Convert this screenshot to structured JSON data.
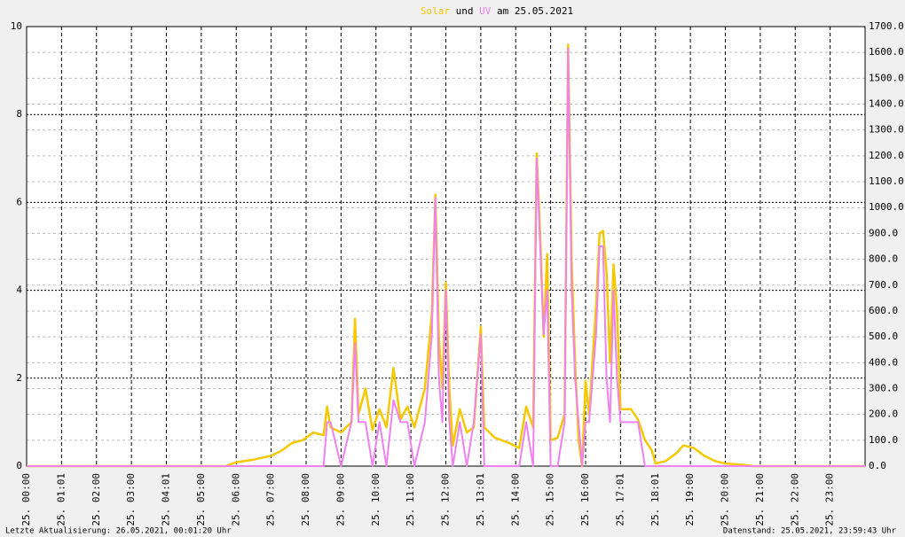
{
  "chart_data": {
    "type": "line",
    "title_connector": "und",
    "title_date": "am 25.05.2021",
    "footer_left": "Letzte Aktualisierung: 26.05.2021, 00:01:20 Uhr",
    "footer_right": "Datenstand: 25.05.2021, 23:59:43 Uhr",
    "x": [
      0,
      5.7,
      6.0,
      6.5,
      7.0,
      7.3,
      7.6,
      7.9,
      8.2,
      8.5,
      8.6,
      8.7,
      9.0,
      9.3,
      9.4,
      9.5,
      9.7,
      9.9,
      10.1,
      10.3,
      10.5,
      10.7,
      10.9,
      11.1,
      11.4,
      11.6,
      11.7,
      11.8,
      11.9,
      12.0,
      12.1,
      12.2,
      12.4,
      12.6,
      12.8,
      13.0,
      13.1,
      13.4,
      13.8,
      14.1,
      14.3,
      14.5,
      14.6,
      14.7,
      14.8,
      14.9,
      15.0,
      15.2,
      15.4,
      15.5,
      15.6,
      15.7,
      15.8,
      15.9,
      16.0,
      16.1,
      16.3,
      16.4,
      16.5,
      16.6,
      16.7,
      16.8,
      16.9,
      17.0,
      17.3,
      17.5,
      17.7,
      17.9,
      18.0,
      18.3,
      18.6,
      18.8,
      19.1,
      19.4,
      19.7,
      20.0,
      20.5,
      20.8,
      24
    ],
    "series": [
      {
        "name": "Solar",
        "color": "#f5c800",
        "axis": "y2",
        "values": [
          0,
          0,
          15,
          25,
          40,
          60,
          90,
          100,
          130,
          120,
          230,
          150,
          130,
          170,
          570,
          200,
          300,
          140,
          220,
          150,
          380,
          180,
          230,
          150,
          300,
          590,
          1050,
          500,
          300,
          710,
          300,
          80,
          220,
          130,
          150,
          540,
          150,
          110,
          90,
          70,
          230,
          150,
          1210,
          900,
          500,
          820,
          100,
          110,
          200,
          1630,
          800,
          400,
          100,
          0,
          330,
          200,
          620,
          900,
          910,
          750,
          400,
          780,
          600,
          220,
          220,
          180,
          100,
          60,
          10,
          20,
          50,
          80,
          70,
          40,
          20,
          10,
          5,
          0,
          0
        ]
      },
      {
        "name": "UV",
        "color": "#ee82ee",
        "values": [
          0,
          0,
          0,
          0,
          0,
          0,
          0,
          0,
          0,
          0,
          1,
          1,
          0,
          1,
          2.8,
          1,
          1,
          0,
          1,
          0,
          1.5,
          1,
          1,
          0,
          1,
          3,
          6.1,
          2,
          1,
          4,
          1,
          0,
          1,
          0,
          1,
          3,
          0,
          0,
          0,
          0,
          1,
          0,
          7,
          5,
          3,
          4,
          0,
          0,
          1,
          9.5,
          4,
          2,
          1,
          0,
          1,
          1,
          3,
          5,
          5,
          2,
          1,
          4,
          2,
          1,
          1,
          1,
          0,
          0,
          0,
          0,
          0,
          0,
          0,
          0,
          0,
          0,
          0,
          0,
          0
        ]
      }
    ],
    "xlim": [
      0,
      24
    ],
    "xticks": [
      {
        "value": 0,
        "label": "25. 00:00"
      },
      {
        "value": 1,
        "label": "25. 01:01"
      },
      {
        "value": 2,
        "label": "25. 02:00"
      },
      {
        "value": 3,
        "label": "25. 03:00"
      },
      {
        "value": 4,
        "label": "25. 04:01"
      },
      {
        "value": 5,
        "label": "25. 05:00"
      },
      {
        "value": 6,
        "label": "25. 06:00"
      },
      {
        "value": 7,
        "label": "25. 07:00"
      },
      {
        "value": 8,
        "label": "25. 08:00"
      },
      {
        "value": 9,
        "label": "25. 09:00"
      },
      {
        "value": 10,
        "label": "25. 10:00"
      },
      {
        "value": 11,
        "label": "25. 11:00"
      },
      {
        "value": 12,
        "label": "25. 12:00"
      },
      {
        "value": 13,
        "label": "25. 13:01"
      },
      {
        "value": 14,
        "label": "25. 14:00"
      },
      {
        "value": 15,
        "label": "25. 15:00"
      },
      {
        "value": 16,
        "label": "25. 16:00"
      },
      {
        "value": 17,
        "label": "25. 17:01"
      },
      {
        "value": 18,
        "label": "25. 18:01"
      },
      {
        "value": 19,
        "label": "25. 19:00"
      },
      {
        "value": 20,
        "label": "25. 20:00"
      },
      {
        "value": 21,
        "label": "25. 21:00"
      },
      {
        "value": 22,
        "label": "25. 22:00"
      },
      {
        "value": 23,
        "label": "25. 23:00"
      }
    ],
    "ylim": [
      0,
      10
    ],
    "yticks": [
      0,
      2,
      4,
      6,
      8,
      10
    ],
    "y2lim": [
      0,
      1700
    ],
    "y2ticks": [
      {
        "value": 0,
        "label": "0.0"
      },
      {
        "value": 100,
        "label": "100.0"
      },
      {
        "value": 200,
        "label": "200.0"
      },
      {
        "value": 300,
        "label": "300.0"
      },
      {
        "value": 400,
        "label": "400.0"
      },
      {
        "value": 500,
        "label": "500.0"
      },
      {
        "value": 600,
        "label": "600.0"
      },
      {
        "value": 700,
        "label": "700.0"
      },
      {
        "value": 800,
        "label": "800.0"
      },
      {
        "value": 900,
        "label": "900.0"
      },
      {
        "value": 1000,
        "label": "1000.0"
      },
      {
        "value": 1100,
        "label": "1100.0"
      },
      {
        "value": 1200,
        "label": "1200.0"
      },
      {
        "value": 1300,
        "label": "1300.0"
      },
      {
        "value": 1400,
        "label": "1400.0"
      },
      {
        "value": 1500,
        "label": "1500.0"
      },
      {
        "value": 1600,
        "label": "1600.0"
      },
      {
        "value": 1700,
        "label": "1700.0"
      }
    ],
    "grid": true
  }
}
